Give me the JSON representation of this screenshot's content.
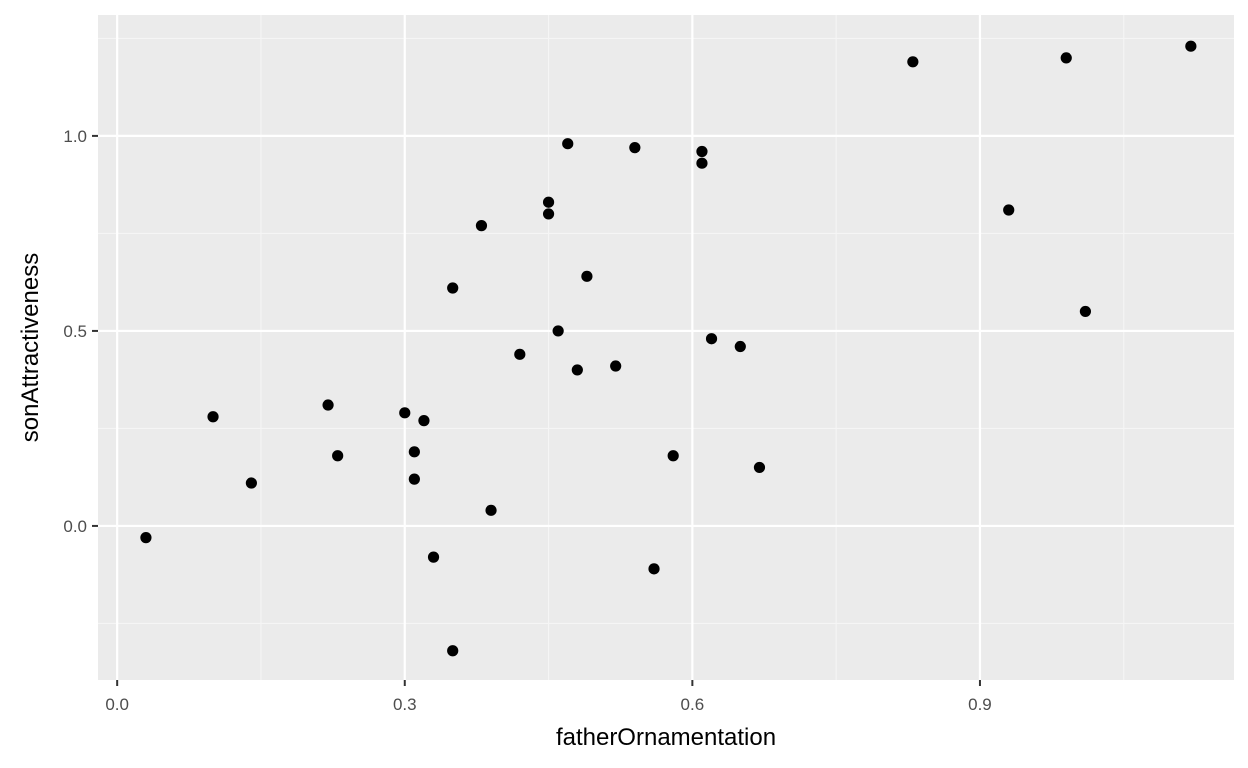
{
  "colors": {
    "panel_background": "#EBEBEB",
    "grid_major": "#FFFFFF",
    "grid_minor": "#F5F5F5",
    "point": "#000000",
    "tick_text": "#4D4D4D",
    "axis_title_text": "#000000"
  },
  "chart_data": {
    "type": "scatter",
    "title": "",
    "xlabel": "fatherOrnamentation",
    "ylabel": "sonAttractiveness",
    "xlim": [
      -0.02,
      1.165
    ],
    "ylim": [
      -0.395,
      1.31
    ],
    "xticks": [
      0.0,
      0.3,
      0.6,
      0.9
    ],
    "xtick_labels": [
      "0.0",
      "0.3",
      "0.6",
      "0.9"
    ],
    "xminor": [
      0.15,
      0.45,
      0.75,
      1.05
    ],
    "yticks": [
      0.0,
      0.5,
      1.0
    ],
    "ytick_labels": [
      "0.0",
      "0.5",
      "1.0"
    ],
    "yminor": [
      -0.25,
      0.25,
      0.75,
      1.25
    ],
    "grid": true,
    "legend": "none",
    "points": [
      {
        "x": 0.03,
        "y": -0.03
      },
      {
        "x": 0.1,
        "y": 0.28
      },
      {
        "x": 0.14,
        "y": 0.11
      },
      {
        "x": 0.22,
        "y": 0.31
      },
      {
        "x": 0.23,
        "y": 0.18
      },
      {
        "x": 0.3,
        "y": 0.29
      },
      {
        "x": 0.31,
        "y": 0.19
      },
      {
        "x": 0.31,
        "y": 0.12
      },
      {
        "x": 0.32,
        "y": 0.27
      },
      {
        "x": 0.33,
        "y": -0.08
      },
      {
        "x": 0.35,
        "y": 0.61
      },
      {
        "x": 0.35,
        "y": -0.32
      },
      {
        "x": 0.38,
        "y": 0.77
      },
      {
        "x": 0.39,
        "y": 0.04
      },
      {
        "x": 0.42,
        "y": 0.44
      },
      {
        "x": 0.45,
        "y": 0.83
      },
      {
        "x": 0.45,
        "y": 0.8
      },
      {
        "x": 0.46,
        "y": 0.5
      },
      {
        "x": 0.47,
        "y": 0.98
      },
      {
        "x": 0.48,
        "y": 0.4
      },
      {
        "x": 0.49,
        "y": 0.64
      },
      {
        "x": 0.52,
        "y": 0.41
      },
      {
        "x": 0.54,
        "y": 0.97
      },
      {
        "x": 0.56,
        "y": -0.11
      },
      {
        "x": 0.58,
        "y": 0.18
      },
      {
        "x": 0.61,
        "y": 0.96
      },
      {
        "x": 0.61,
        "y": 0.93
      },
      {
        "x": 0.62,
        "y": 0.48
      },
      {
        "x": 0.65,
        "y": 0.46
      },
      {
        "x": 0.67,
        "y": 0.15
      },
      {
        "x": 0.83,
        "y": 1.19
      },
      {
        "x": 0.93,
        "y": 0.81
      },
      {
        "x": 0.99,
        "y": 1.2
      },
      {
        "x": 1.01,
        "y": 0.55
      },
      {
        "x": 1.12,
        "y": 1.23
      }
    ]
  }
}
